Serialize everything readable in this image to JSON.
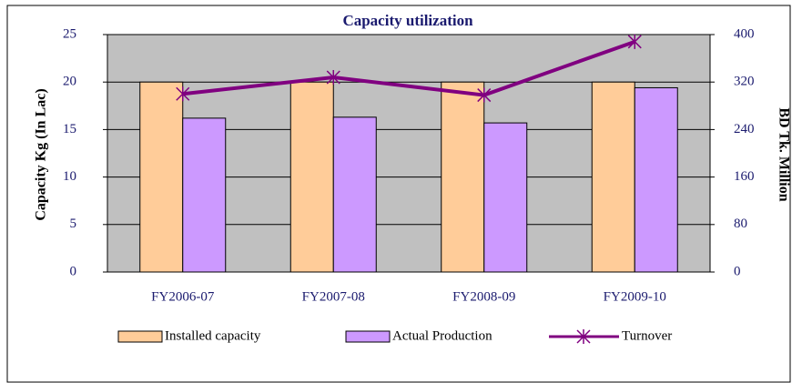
{
  "chart_data": {
    "type": "bar_line",
    "title": "Capacity utilization",
    "categories": [
      "FY2006-07",
      "FY2007-08",
      "FY2008-09",
      "FY2009-10"
    ],
    "series": [
      {
        "name": "Installed capacity",
        "type": "bar",
        "color": "#ffcc99",
        "values": [
          20,
          20,
          20,
          20
        ]
      },
      {
        "name": "Actual Production",
        "type": "bar",
        "color": "#cc99ff",
        "values": [
          16.2,
          16.3,
          15.7,
          19.4
        ]
      },
      {
        "name": "Turnover",
        "type": "line",
        "axis": "y2",
        "color": "#800080",
        "values": [
          300,
          328,
          298,
          388
        ]
      }
    ],
    "y_label": "Capacity Kg (In Lac)",
    "y2_label": "BD Tk. Million",
    "ylim": [
      0,
      25
    ],
    "yticks": [
      0,
      5,
      10,
      15,
      20,
      25
    ],
    "y2lim": [
      0,
      400
    ],
    "y2ticks": [
      0,
      80,
      160,
      240,
      320,
      400
    ],
    "grid": true,
    "plot_background": "#c0c0c0",
    "legend": "bottom"
  }
}
